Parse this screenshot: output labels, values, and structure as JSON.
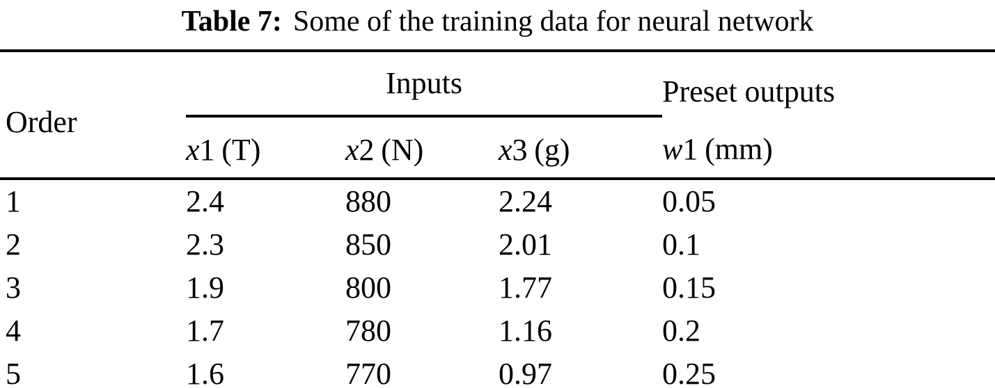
{
  "caption": {
    "label": "Table 7:",
    "text": "Some of the training data for neural network"
  },
  "table": {
    "group_headers": {
      "order": "Order",
      "inputs": "Inputs",
      "preset_outputs": "Preset outputs"
    },
    "subheaders": [
      {
        "var": "x",
        "num": "1",
        "unit": "(T)"
      },
      {
        "var": "x",
        "num": "2",
        "unit": "(N)"
      },
      {
        "var": "x",
        "num": "3",
        "unit": "(g)"
      },
      {
        "var": "w",
        "num": "1",
        "unit": "(mm)"
      }
    ],
    "rows": [
      [
        "1",
        "2.4",
        "880",
        "2.24",
        "0.05"
      ],
      [
        "2",
        "2.3",
        "850",
        "2.01",
        "0.1"
      ],
      [
        "3",
        "1.9",
        "800",
        "1.77",
        "0.15"
      ],
      [
        "4",
        "1.7",
        "780",
        "1.16",
        "0.2"
      ],
      [
        "5",
        "1.6",
        "770",
        "0.97",
        "0.25"
      ]
    ]
  },
  "colors": {
    "text": "#000000",
    "background": "#ffffff",
    "rule": "#000000"
  }
}
